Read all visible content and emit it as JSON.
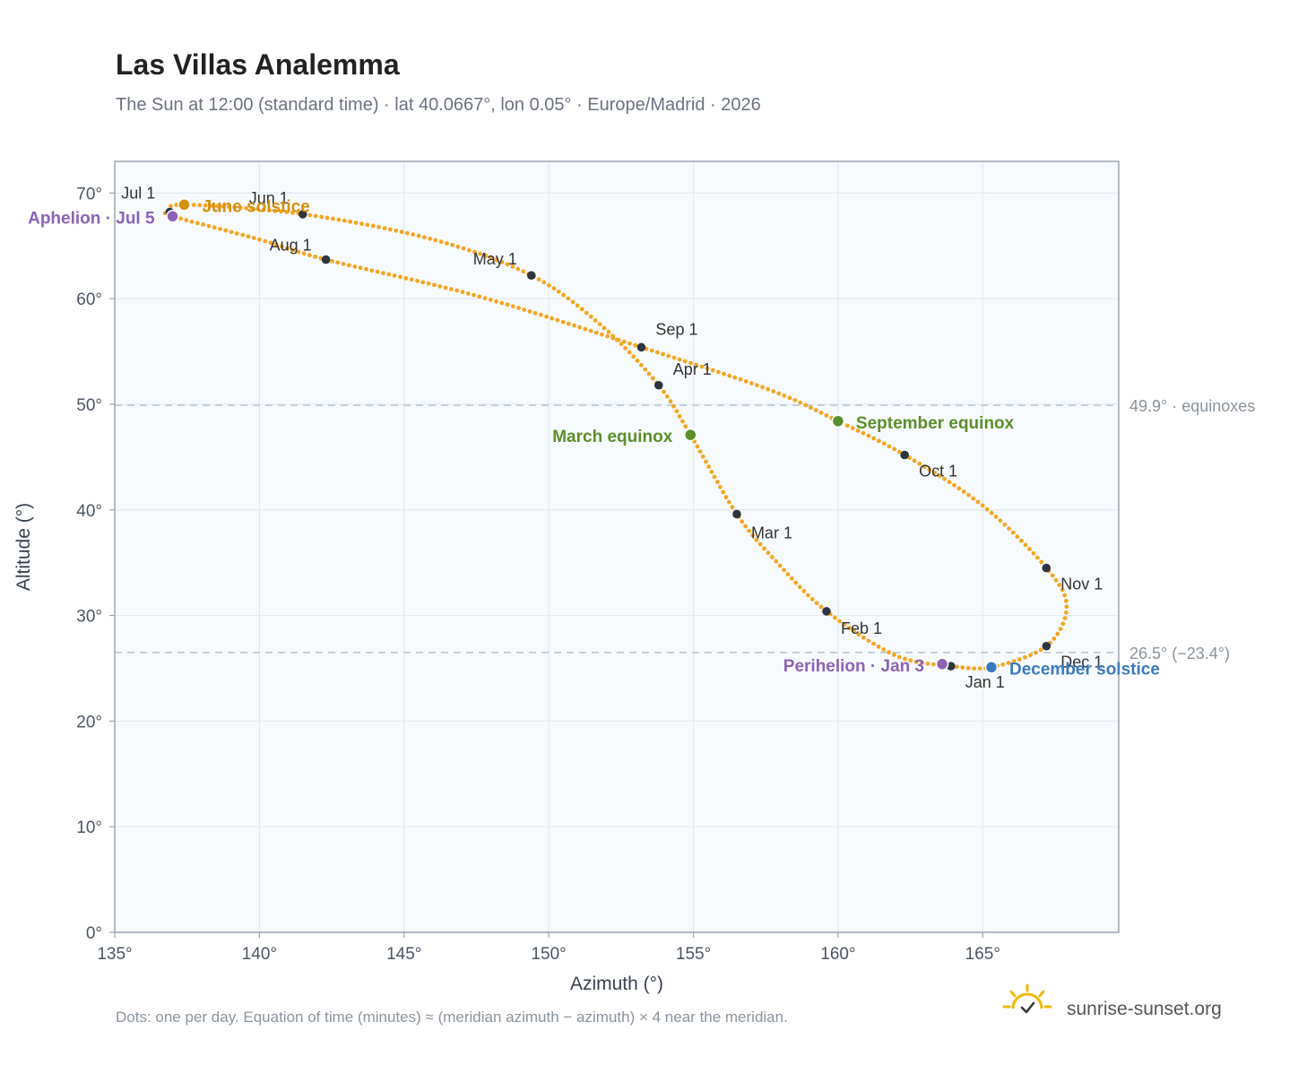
{
  "title": "Las Villas Analemma",
  "subtitle": "The Sun at 12:00 (standard time) · lat 40.0667°, lon 0.05° · Europe/Madrid · 2026",
  "footnote": "Dots: one per day. Equation of time (minutes) ≈ (meridian azimuth − azimuth) × 4 near the meridian.",
  "brand": {
    "name": "sunrise-sunset.org",
    "icon": "sun-checkmark-icon"
  },
  "colors": {
    "curve": "#f5a623",
    "month_marker": "#2d3540",
    "equinox": "#5a8f29",
    "june_solstice": "#d4900e",
    "december_solstice": "#3a7abf",
    "apsis": "#8c63b5",
    "plot_background": "#f8fbfd",
    "reference_line": "#b8c8d4"
  },
  "chart_data": {
    "type": "scatter",
    "title": "Las Villas Analemma",
    "xlabel": "Azimuth (°)",
    "ylabel": "Altitude (°)",
    "xlim": [
      135,
      169.7
    ],
    "ylim": [
      0,
      73
    ],
    "grid": true,
    "x_ticks": [
      {
        "value": 135,
        "label": "135°"
      },
      {
        "value": 140,
        "label": "140°"
      },
      {
        "value": 145,
        "label": "145°"
      },
      {
        "value": 150,
        "label": "150°"
      },
      {
        "value": 155,
        "label": "155°"
      },
      {
        "value": 160,
        "label": "160°"
      },
      {
        "value": 165,
        "label": "165°"
      }
    ],
    "y_ticks": [
      {
        "value": 0,
        "label": "0°"
      },
      {
        "value": 10,
        "label": "10°"
      },
      {
        "value": 20,
        "label": "20°"
      },
      {
        "value": 30,
        "label": "30°"
      },
      {
        "value": 40,
        "label": "40°"
      },
      {
        "value": 50,
        "label": "50°"
      },
      {
        "value": 60,
        "label": "60°"
      },
      {
        "value": 70,
        "label": "70°"
      }
    ],
    "reference_lines": [
      {
        "y": 49.9,
        "label": "49.9° · equinoxes"
      },
      {
        "y": 26.5,
        "label": "26.5° (−23.4°)"
      }
    ],
    "month_markers": [
      {
        "label": "Jan 1",
        "x": 163.9,
        "y": 25.2
      },
      {
        "label": "Feb 1",
        "x": 159.6,
        "y": 30.4
      },
      {
        "label": "Mar 1",
        "x": 156.5,
        "y": 39.6
      },
      {
        "label": "Apr 1",
        "x": 153.8,
        "y": 51.8
      },
      {
        "label": "May 1",
        "x": 149.4,
        "y": 62.2
      },
      {
        "label": "Jun 1",
        "x": 141.5,
        "y": 68.0
      },
      {
        "label": "Jul 1",
        "x": 136.9,
        "y": 68.2
      },
      {
        "label": "Aug 1",
        "x": 142.3,
        "y": 63.7
      },
      {
        "label": "Sep 1",
        "x": 153.2,
        "y": 55.4
      },
      {
        "label": "Oct 1",
        "x": 162.3,
        "y": 45.2
      },
      {
        "label": "Nov 1",
        "x": 167.2,
        "y": 34.5
      },
      {
        "label": "Dec 1",
        "x": 167.2,
        "y": 27.1
      }
    ],
    "events": [
      {
        "label": "June solstice",
        "x": 137.4,
        "y": 68.9,
        "kind": "june_solstice"
      },
      {
        "label": "Aphelion · Jul 5",
        "x": 137.0,
        "y": 67.8,
        "kind": "apsis"
      },
      {
        "label": "March equinox",
        "x": 154.9,
        "y": 47.1,
        "kind": "equinox"
      },
      {
        "label": "September equinox",
        "x": 160.0,
        "y": 48.4,
        "kind": "equinox"
      },
      {
        "label": "Perihelion · Jan 3",
        "x": 163.6,
        "y": 25.4,
        "kind": "apsis"
      },
      {
        "label": "December solstice",
        "x": 165.3,
        "y": 25.1,
        "kind": "december_solstice"
      }
    ],
    "path": [
      [
        163.9,
        25.2
      ],
      [
        162.0,
        26.2
      ],
      [
        159.6,
        30.4
      ],
      [
        157.9,
        35.0
      ],
      [
        156.5,
        39.6
      ],
      [
        154.9,
        47.1
      ],
      [
        153.8,
        51.8
      ],
      [
        151.8,
        57.5
      ],
      [
        149.4,
        62.2
      ],
      [
        146.0,
        65.6
      ],
      [
        141.5,
        68.0
      ],
      [
        137.4,
        68.9
      ],
      [
        136.9,
        68.2
      ],
      [
        137.0,
        67.8
      ],
      [
        140.0,
        65.6
      ],
      [
        142.3,
        63.7
      ],
      [
        147.6,
        60.2
      ],
      [
        153.2,
        55.4
      ],
      [
        157.6,
        51.4
      ],
      [
        160.0,
        48.4
      ],
      [
        162.3,
        45.2
      ],
      [
        165.0,
        40.4
      ],
      [
        167.2,
        34.5
      ],
      [
        167.9,
        30.8
      ],
      [
        167.2,
        27.1
      ],
      [
        165.3,
        25.1
      ],
      [
        163.9,
        25.2
      ]
    ]
  }
}
